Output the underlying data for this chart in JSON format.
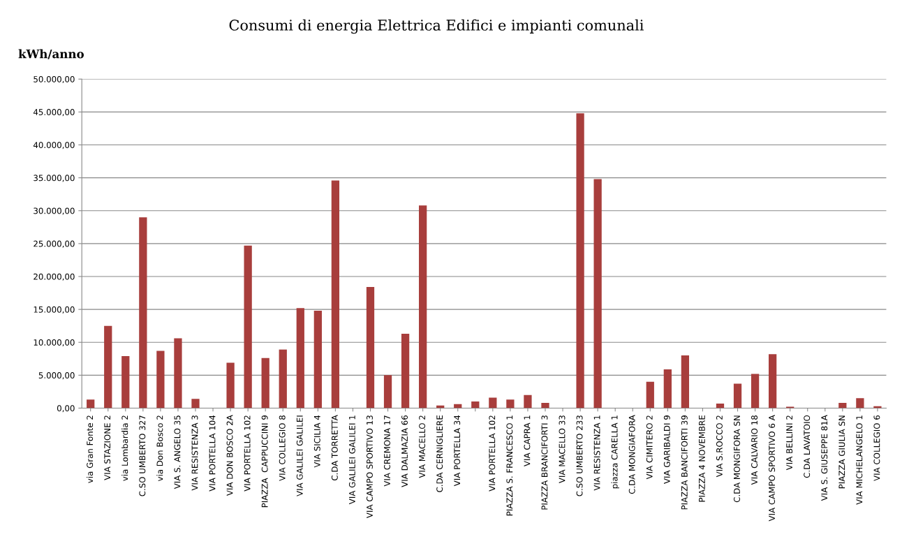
{
  "chart_data": {
    "type": "bar",
    "title": "Consumi di energia Elettrica Edifici e impianti comunali",
    "ylabel": "kWh/anno",
    "categories": [
      "via Gran Fonte 2",
      "VIA STAZIONE 2",
      "via Lombardia 2",
      "C.SO UMBERTO 327",
      "via Don Bosco 2",
      "VIA S. ANGELO 35",
      "VIA RESISTENZA 3",
      "VIA PORTELLA 104",
      "VIA DON BOSCO 2A",
      "VIA PORTELLA 102",
      "PIAZZA  CAPPUCCINI 9",
      "VIA COLLEGIO 8",
      "VIA GALILEI GALILEI",
      "VIA SICILIA 4",
      "C.DA TORRETTA",
      "VIA GALILEI GALILEI 1",
      "VIA CAMPO SPORTIVO 13",
      "VIA CREMONA 17",
      "VIA DALMAZIA 66",
      "VIA MACELLO 2",
      "C.DA CERNIGLIERE",
      "VIA PORTELLA 34",
      null,
      "VIA PORTELLA 102",
      "PIAZZA S. FRANCESCO 1",
      "VIA CAPRA 1",
      "PIAZZA BRANCIFORTI 3",
      "VIA MACELLO 33",
      "C.SO UMBERTO 233",
      "VIA RESISTENZA 1",
      "piazza CARELLA 1",
      "C.DA MONGIAFORA",
      "VIA CIMITERO 2",
      "VIA GARIBALDI 9",
      "PIAZZA BANCIFORTI 39",
      "PIAZZA 4 NOVEMBRE",
      "VIA S.ROCCO 2",
      "C.DA MONGIFORA SN",
      "VIA CALVARIO 18",
      "VIA CAMPO SPORTIVO 6 A",
      "VIA BELLINI 2",
      "C.DA LAVATOIO",
      "VIA S. GIUSEPPE 81A",
      "PIAZZA GIULIA SN",
      "VIA MICHELANGELO 1",
      "VIA COLLEGIO 6"
    ],
    "values": [
      1300,
      12500,
      7900,
      29000,
      8700,
      10600,
      1400,
      0,
      6900,
      24700,
      7600,
      8900,
      15200,
      14800,
      34600,
      0,
      18400,
      5000,
      11300,
      30800,
      400,
      600,
      1000,
      1600,
      1300,
      2000,
      800,
      0,
      44800,
      34800,
      0,
      0,
      4000,
      5900,
      8000,
      0,
      700,
      3700,
      5200,
      8200,
      200,
      0,
      0,
      800,
      1500,
      300
    ],
    "color": "#a83e3c",
    "ylim": [
      0,
      50000
    ],
    "yticks": [
      {
        "value": 0,
        "label": "0,00"
      },
      {
        "value": 5000,
        "label": "5.000,00"
      },
      {
        "value": 10000,
        "label": "10.000,00"
      },
      {
        "value": 15000,
        "label": "15.000,00"
      },
      {
        "value": 20000,
        "label": "20.000,00"
      },
      {
        "value": 25000,
        "label": "25.000,00"
      },
      {
        "value": 30000,
        "label": "30.000,00"
      },
      {
        "value": 35000,
        "label": "35.000,00"
      },
      {
        "value": 40000,
        "label": "40.000,00"
      },
      {
        "value": 45000,
        "label": "45.000,00"
      },
      {
        "value": 50000,
        "label": "50.000,00"
      }
    ],
    "grid": "y"
  }
}
